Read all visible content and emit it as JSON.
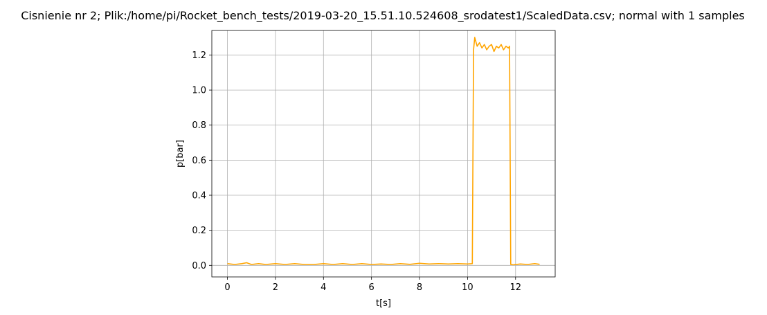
{
  "chart_data": {
    "type": "line",
    "title": "Cisnienie nr 2; Plik:/home/pi/Rocket_bench_tests/2019-03-20_15.51.10.524608_srodatest1/ScaledData.csv; normal with 1 samples",
    "xlabel": "t[s]",
    "ylabel": "p[bar]",
    "xlim": [
      -0.65,
      13.65
    ],
    "ylim": [
      -0.066,
      1.34
    ],
    "grid": true,
    "xticks": [
      0,
      2,
      4,
      6,
      8,
      10,
      12
    ],
    "xtick_labels": [
      "0",
      "2",
      "4",
      "6",
      "8",
      "10",
      "12"
    ],
    "yticks": [
      0.0,
      0.2,
      0.4,
      0.6,
      0.8,
      1.0,
      1.2
    ],
    "ytick_labels": [
      "0.0",
      "0.2",
      "0.4",
      "0.6",
      "0.8",
      "1.0",
      "1.2"
    ],
    "series": [
      {
        "color": "#ffa500",
        "x": [
          0.0,
          0.3,
          0.6,
          0.8,
          1.0,
          1.3,
          1.6,
          2.0,
          2.4,
          2.8,
          3.2,
          3.6,
          4.0,
          4.4,
          4.8,
          5.2,
          5.6,
          6.0,
          6.4,
          6.8,
          7.2,
          7.6,
          8.0,
          8.4,
          8.8,
          9.2,
          9.6,
          10.0,
          10.2,
          10.25,
          10.3,
          10.4,
          10.5,
          10.6,
          10.7,
          10.8,
          10.9,
          11.0,
          11.1,
          11.2,
          11.3,
          11.4,
          11.5,
          11.6,
          11.7,
          11.75,
          11.8,
          11.9,
          12.2,
          12.5,
          12.8,
          13.0
        ],
        "y": [
          0.01,
          0.005,
          0.01,
          0.015,
          0.005,
          0.01,
          0.005,
          0.01,
          0.005,
          0.01,
          0.005,
          0.005,
          0.01,
          0.005,
          0.01,
          0.005,
          0.01,
          0.005,
          0.008,
          0.005,
          0.01,
          0.006,
          0.012,
          0.008,
          0.01,
          0.008,
          0.01,
          0.008,
          0.01,
          1.23,
          1.3,
          1.25,
          1.27,
          1.24,
          1.26,
          1.23,
          1.25,
          1.26,
          1.22,
          1.25,
          1.24,
          1.26,
          1.23,
          1.25,
          1.24,
          1.25,
          0.005,
          0.003,
          0.008,
          0.005,
          0.01,
          0.006
        ]
      }
    ]
  }
}
